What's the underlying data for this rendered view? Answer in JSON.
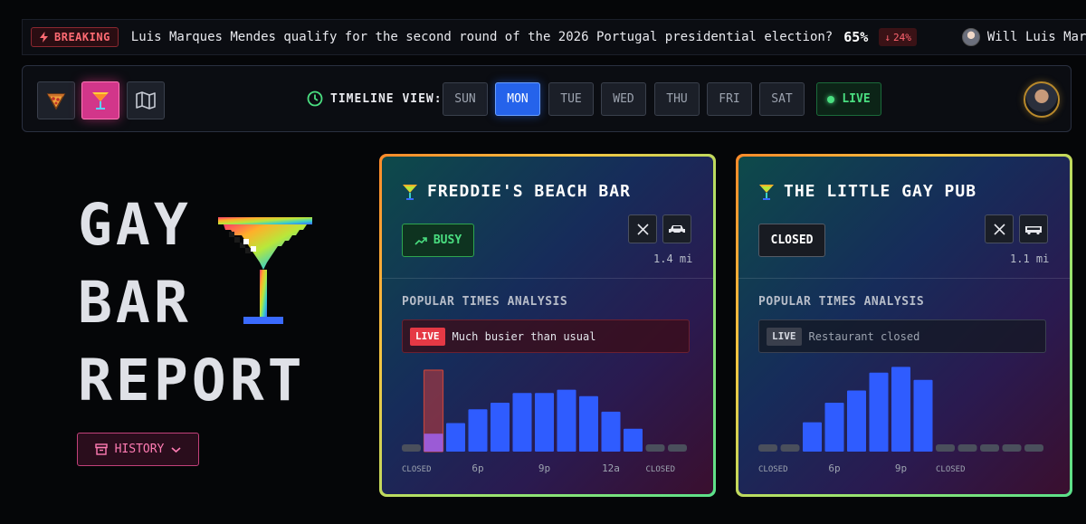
{
  "ticker": {
    "breaking_label": "BREAKING",
    "headline": "Luis Marques Mendes qualify for the second round of the 2026 Portugal presidential election?",
    "probability": "65%",
    "change": "24%",
    "next_headline": "Will Luis Marques Mendes qualify"
  },
  "toolbar": {
    "view_buttons": [
      "pizza-icon",
      "cocktail-icon",
      "map-icon"
    ],
    "timeline_label": "TIMELINE VIEW:",
    "days": [
      "SUN",
      "MON",
      "TUE",
      "WED",
      "THU",
      "FRI",
      "SAT"
    ],
    "active_day": "MON",
    "live_label": "LIVE"
  },
  "hero": {
    "title_lines": [
      "GAY",
      "BAR",
      "REPORT"
    ],
    "history_label": "HISTORY"
  },
  "cards": [
    {
      "name": "FREDDIE'S BEACH BAR",
      "status": "BUSY",
      "distance": "1.4 mi",
      "section_title": "POPULAR TIMES ANALYSIS",
      "live_tag": "LIVE",
      "live_text": "Much busier than usual",
      "bar_levels": [
        0,
        100,
        35,
        52,
        60,
        72,
        72,
        76,
        68,
        49,
        28,
        0,
        0
      ],
      "live_hour_index": 1,
      "live_fill": 22,
      "x_labels": [
        "CLOSED",
        "6p",
        "9p",
        "12a",
        "CLOSED"
      ]
    },
    {
      "name": "THE LITTLE GAY PUB",
      "status": "CLOSED",
      "distance": "1.1 mi",
      "section_title": "POPULAR TIMES ANALYSIS",
      "live_tag": "LIVE",
      "live_text": "Restaurant closed",
      "bar_levels": [
        0,
        0,
        36,
        60,
        75,
        97,
        104,
        88,
        0,
        0,
        0,
        0,
        0
      ],
      "x_labels": [
        "CLOSED",
        "6p",
        "9p",
        "CLOSED"
      ]
    }
  ],
  "colors": {
    "bar_blue": "#2f5cff",
    "bar_closed": "#4a4f5c",
    "live_bar_outline": "#c0443d",
    "accent_pink": "#d2368a",
    "live_green": "#4ade80"
  }
}
